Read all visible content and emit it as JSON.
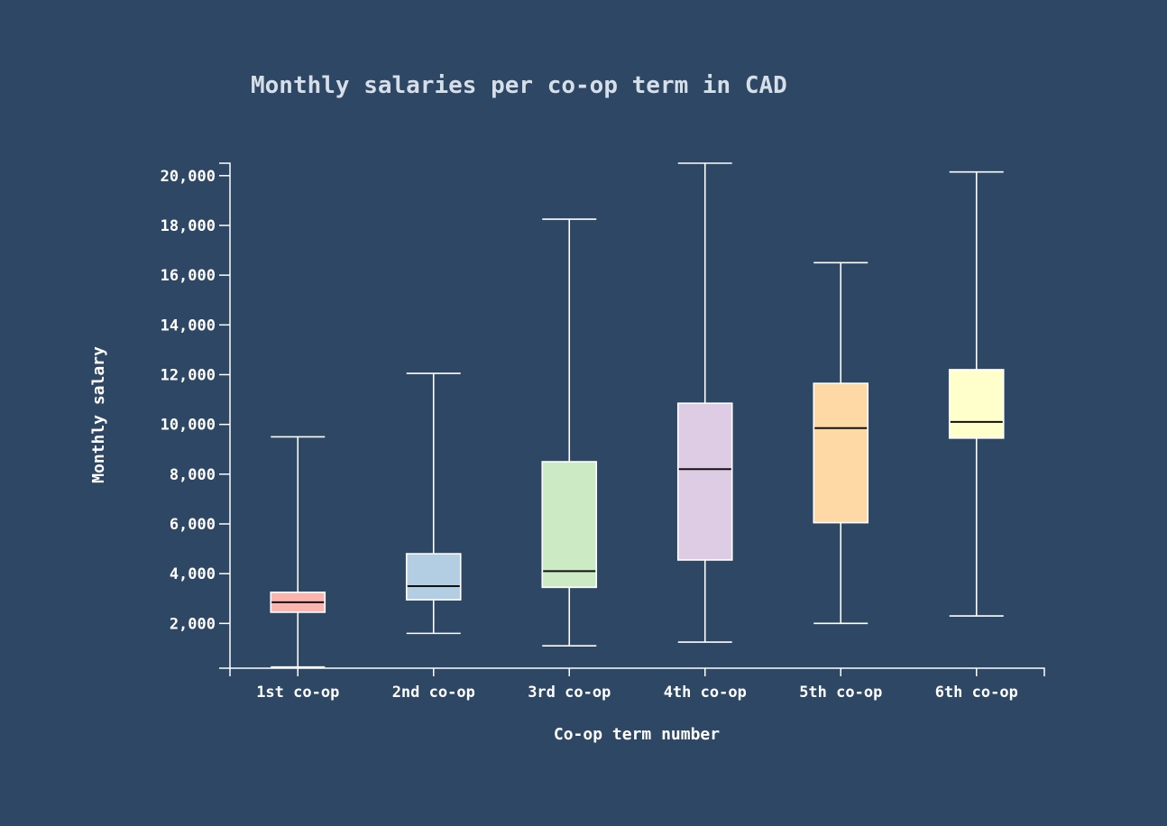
{
  "chart_data": {
    "type": "box",
    "title": "Monthly salaries per co-op term in CAD",
    "xlabel": "Co-op term number",
    "ylabel": "Monthly salary",
    "ylim": [
      200,
      20500
    ],
    "y_ticks": [
      2000,
      4000,
      6000,
      8000,
      10000,
      12000,
      14000,
      16000,
      18000,
      20000
    ],
    "y_tick_labels": [
      "2,000",
      "4,000",
      "6,000",
      "8,000",
      "10,000",
      "12,000",
      "14,000",
      "16,000",
      "18,000",
      "20,000"
    ],
    "categories": [
      "1st co-op",
      "2nd co-op",
      "3rd co-op",
      "4th co-op",
      "5th co-op",
      "6th co-op"
    ],
    "series": [
      {
        "name": "1st co-op",
        "min": 250,
        "q1": 2450,
        "median": 2850,
        "q3": 3250,
        "max": 9500,
        "color": "#fbb4ae"
      },
      {
        "name": "2nd co-op",
        "min": 1600,
        "q1": 2950,
        "median": 3500,
        "q3": 4800,
        "max": 12050,
        "color": "#b3cde3"
      },
      {
        "name": "3rd co-op",
        "min": 1100,
        "q1": 3450,
        "median": 4100,
        "q3": 8500,
        "max": 18250,
        "color": "#ccebc5"
      },
      {
        "name": "4th co-op",
        "min": 1250,
        "q1": 4550,
        "median": 8200,
        "q3": 10850,
        "max": 20500,
        "color": "#decbe4"
      },
      {
        "name": "5th co-op",
        "min": 2000,
        "q1": 6050,
        "median": 9850,
        "q3": 11650,
        "max": 16500,
        "color": "#fed9a6"
      },
      {
        "name": "6th co-op",
        "min": 2300,
        "q1": 9450,
        "median": 10100,
        "q3": 12200,
        "max": 20150,
        "color": "#ffffcc"
      }
    ]
  },
  "colors": {
    "background": "#2d4764",
    "axis": "#ffffff",
    "median": "#111111"
  }
}
